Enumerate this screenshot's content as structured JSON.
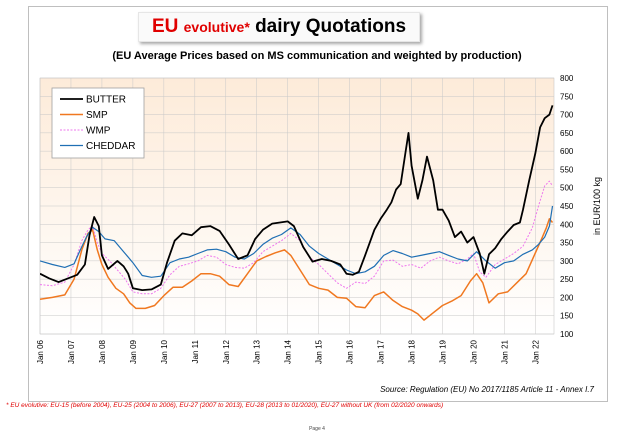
{
  "title": {
    "part1": "EU",
    "part2": "evolutive*",
    "part3": "dairy Quotations"
  },
  "subtitle": "(EU Average Prices based on MS communication and weighted by production)",
  "source": "Source: Regulation (EU) No 2017/1185 Article 11 - Annex I.7",
  "footnote": "* EU evolutive: EU-15 (before 2004), EU-25 (2004 to 2006), EU-27 (2007 to 2013), EU-28 (2013 to 01/2020), EU-27 without UK (from 02/2020 onwards)",
  "page_label": "Page 4",
  "colors": {
    "plot_bg_top": "#fdebd9",
    "plot_bg_bottom": "#ffffff",
    "grid": "#c8c8c8"
  },
  "chart_data": {
    "type": "line",
    "title": "EU evolutive* dairy Quotations",
    "subtitle": "(EU Average Prices based on MS communication and weighted by production)",
    "ylabel": "in EUR/100 kg",
    "xlabel": "",
    "ylim": [
      100,
      800
    ],
    "yticks": [
      100,
      150,
      200,
      250,
      300,
      350,
      400,
      450,
      500,
      550,
      600,
      650,
      700,
      750,
      800
    ],
    "xlim": [
      2006.0,
      2022.6
    ],
    "xtick_labels": [
      "Jan 06",
      "Jan 07",
      "Jan 08",
      "Jan 09",
      "Jan 10",
      "Jan 11",
      "Jan 12",
      "Jan 13",
      "Jan 14",
      "Jan 15",
      "Jan 16",
      "Jan 17",
      "Jan 18",
      "Jan 19",
      "Jan 20",
      "Jan 21",
      "Jan 22"
    ],
    "xtick_values": [
      2006,
      2007,
      2008,
      2009,
      2010,
      2011,
      2012,
      2013,
      2014,
      2015,
      2016,
      2017,
      2018,
      2019,
      2020,
      2021,
      2022
    ],
    "grid": true,
    "legend_position": "top-left",
    "series": [
      {
        "name": "BUTTER",
        "color": "#000000",
        "width": 1.8,
        "x": [
          2006.0,
          2006.3,
          2006.6,
          2006.9,
          2007.2,
          2007.45,
          2007.6,
          2007.75,
          2007.9,
          2008.0,
          2008.2,
          2008.5,
          2008.7,
          2008.85,
          2009.0,
          2009.3,
          2009.6,
          2009.9,
          2010.1,
          2010.35,
          2010.6,
          2010.9,
          2011.2,
          2011.5,
          2011.8,
          2012.1,
          2012.4,
          2012.7,
          2012.95,
          2013.2,
          2013.5,
          2013.75,
          2014.0,
          2014.2,
          2014.5,
          2014.8,
          2015.1,
          2015.4,
          2015.7,
          2015.9,
          2016.1,
          2016.3,
          2016.5,
          2016.8,
          2017.0,
          2017.2,
          2017.35,
          2017.5,
          2017.65,
          2017.8,
          2017.9,
          2018.0,
          2018.2,
          2018.35,
          2018.5,
          2018.7,
          2018.85,
          2019.0,
          2019.2,
          2019.4,
          2019.6,
          2019.8,
          2020.0,
          2020.2,
          2020.35,
          2020.5,
          2020.7,
          2020.9,
          2021.1,
          2021.3,
          2021.5,
          2021.6,
          2021.8,
          2022.0,
          2022.15,
          2022.3,
          2022.45,
          2022.55
        ],
        "y": [
          265,
          252,
          242,
          252,
          262,
          290,
          370,
          420,
          395,
          315,
          278,
          300,
          285,
          265,
          225,
          220,
          222,
          235,
          295,
          355,
          375,
          370,
          392,
          395,
          382,
          345,
          305,
          315,
          360,
          385,
          402,
          405,
          408,
          395,
          338,
          298,
          305,
          300,
          290,
          265,
          262,
          270,
          315,
          385,
          415,
          440,
          460,
          495,
          510,
          595,
          650,
          560,
          470,
          520,
          585,
          520,
          440,
          440,
          410,
          365,
          380,
          350,
          365,
          320,
          265,
          318,
          335,
          360,
          380,
          398,
          405,
          440,
          520,
          595,
          665,
          690,
          700,
          725
        ]
      },
      {
        "name": "SMP",
        "color": "#f07820",
        "width": 1.5,
        "x": [
          2006.0,
          2006.4,
          2006.8,
          2007.1,
          2007.35,
          2007.55,
          2007.7,
          2007.85,
          2008.0,
          2008.2,
          2008.45,
          2008.7,
          2008.9,
          2009.1,
          2009.4,
          2009.7,
          2010.0,
          2010.3,
          2010.6,
          2010.9,
          2011.2,
          2011.5,
          2011.8,
          2012.1,
          2012.4,
          2012.7,
          2013.0,
          2013.3,
          2013.6,
          2013.9,
          2014.1,
          2014.4,
          2014.7,
          2015.0,
          2015.3,
          2015.6,
          2015.9,
          2016.2,
          2016.5,
          2016.8,
          2017.1,
          2017.4,
          2017.7,
          2018.0,
          2018.2,
          2018.4,
          2018.7,
          2019.0,
          2019.3,
          2019.6,
          2019.9,
          2020.1,
          2020.3,
          2020.5,
          2020.8,
          2021.1,
          2021.4,
          2021.7,
          2022.0,
          2022.2,
          2022.35,
          2022.45,
          2022.55
        ],
        "y": [
          195,
          200,
          207,
          250,
          330,
          375,
          385,
          330,
          290,
          255,
          225,
          210,
          185,
          170,
          170,
          178,
          205,
          228,
          228,
          245,
          265,
          265,
          258,
          235,
          230,
          265,
          300,
          312,
          322,
          330,
          315,
          275,
          235,
          225,
          220,
          200,
          198,
          175,
          172,
          205,
          215,
          192,
          175,
          165,
          155,
          138,
          158,
          178,
          190,
          205,
          245,
          265,
          240,
          185,
          210,
          215,
          240,
          265,
          322,
          360,
          390,
          415,
          405
        ]
      },
      {
        "name": "WMP",
        "color": "#ee77ee",
        "width": 1.0,
        "dash": "2,1.5",
        "x": [
          2006.0,
          2006.4,
          2006.8,
          2007.1,
          2007.35,
          2007.55,
          2007.7,
          2007.85,
          2008.0,
          2008.25,
          2008.5,
          2008.75,
          2009.0,
          2009.3,
          2009.6,
          2009.9,
          2010.2,
          2010.5,
          2010.8,
          2011.1,
          2011.4,
          2011.7,
          2012.0,
          2012.3,
          2012.6,
          2012.9,
          2013.2,
          2013.5,
          2013.8,
          2014.1,
          2014.4,
          2014.7,
          2015.0,
          2015.3,
          2015.6,
          2015.9,
          2016.2,
          2016.5,
          2016.8,
          2017.1,
          2017.4,
          2017.7,
          2018.0,
          2018.3,
          2018.6,
          2018.9,
          2019.2,
          2019.5,
          2019.8,
          2020.0,
          2020.2,
          2020.4,
          2020.7,
          2021.0,
          2021.3,
          2021.6,
          2021.9,
          2022.1,
          2022.3,
          2022.45,
          2022.55
        ],
        "y": [
          235,
          232,
          242,
          290,
          355,
          385,
          395,
          350,
          320,
          300,
          275,
          250,
          215,
          210,
          210,
          225,
          262,
          285,
          292,
          300,
          315,
          310,
          290,
          282,
          280,
          295,
          325,
          340,
          355,
          375,
          355,
          310,
          290,
          265,
          240,
          225,
          242,
          238,
          258,
          300,
          302,
          285,
          290,
          280,
          300,
          310,
          300,
          292,
          305,
          320,
          270,
          255,
          290,
          305,
          320,
          340,
          390,
          450,
          505,
          518,
          505
        ]
      },
      {
        "name": "CHEDDAR",
        "color": "#1f6fb4",
        "width": 1.2,
        "x": [
          2006.0,
          2006.4,
          2006.8,
          2007.1,
          2007.3,
          2007.5,
          2007.7,
          2007.9,
          2008.1,
          2008.4,
          2008.7,
          2009.0,
          2009.3,
          2009.6,
          2009.9,
          2010.2,
          2010.5,
          2010.8,
          2011.1,
          2011.4,
          2011.7,
          2012.0,
          2012.3,
          2012.6,
          2012.9,
          2013.2,
          2013.5,
          2013.8,
          2014.1,
          2014.4,
          2014.7,
          2015.0,
          2015.3,
          2015.6,
          2015.9,
          2016.2,
          2016.5,
          2016.8,
          2017.1,
          2017.4,
          2017.7,
          2018.0,
          2018.3,
          2018.6,
          2018.9,
          2019.2,
          2019.5,
          2019.8,
          2020.1,
          2020.4,
          2020.7,
          2021.0,
          2021.3,
          2021.6,
          2021.9,
          2022.1,
          2022.3,
          2022.45,
          2022.55
        ],
        "y": [
          300,
          290,
          282,
          292,
          330,
          365,
          392,
          380,
          360,
          355,
          325,
          295,
          260,
          255,
          258,
          295,
          305,
          310,
          320,
          330,
          332,
          325,
          310,
          305,
          320,
          345,
          362,
          372,
          390,
          372,
          340,
          320,
          305,
          290,
          275,
          265,
          270,
          285,
          315,
          328,
          320,
          310,
          315,
          320,
          325,
          315,
          305,
          300,
          325,
          300,
          280,
          295,
          300,
          318,
          330,
          345,
          365,
          395,
          450
        ]
      }
    ]
  }
}
